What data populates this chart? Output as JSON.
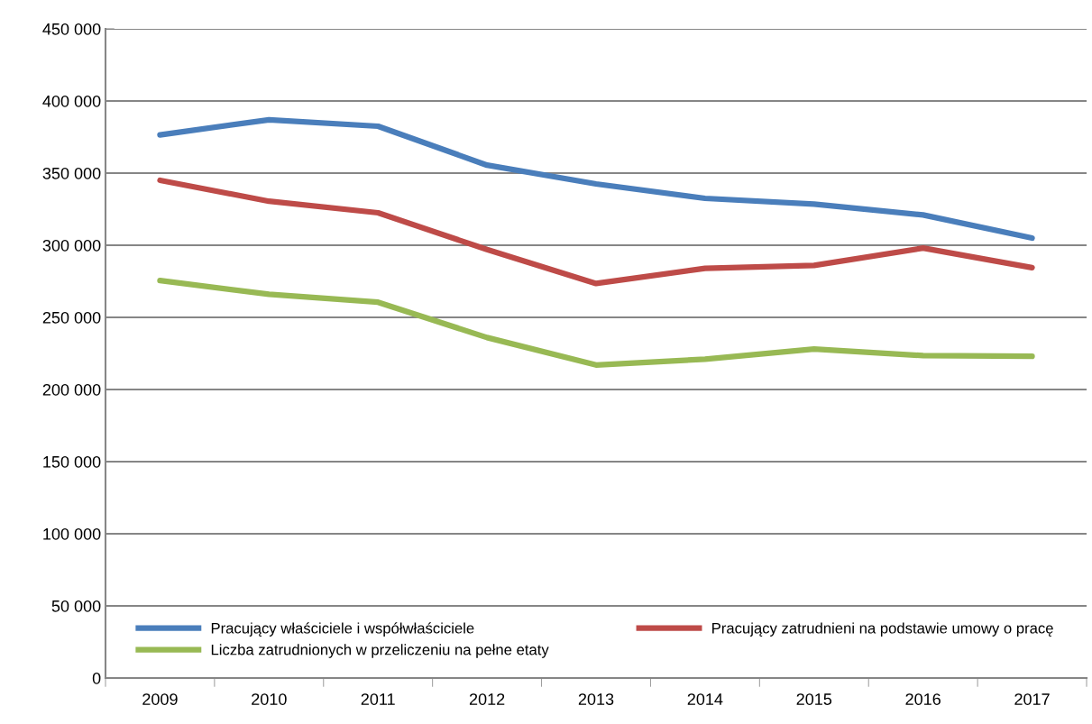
{
  "chart_data": {
    "type": "line",
    "categories": [
      "2009",
      "2010",
      "2011",
      "2012",
      "2013",
      "2014",
      "2015",
      "2016",
      "2017"
    ],
    "series": [
      {
        "name": "Pracujący właściciele i współwłaściciele",
        "color": "#4a7ebb",
        "values": [
          376500,
          387000,
          382500,
          355500,
          342500,
          332500,
          328500,
          321000,
          305000
        ]
      },
      {
        "name": "Pracujący zatrudnieni na podstawie umowy o pracę",
        "color": "#be4b48",
        "values": [
          345000,
          330500,
          322500,
          297000,
          273500,
          284000,
          286000,
          298000,
          284500
        ]
      },
      {
        "name": "Liczba zatrudnionych w przeliczeniu na pełne etaty",
        "color": "#98b954",
        "values": [
          275500,
          266000,
          260500,
          236000,
          217000,
          221000,
          228000,
          223500,
          223000
        ]
      }
    ],
    "ylim": [
      0,
      450000
    ],
    "yticks": [
      {
        "value": 0,
        "label": "0"
      },
      {
        "value": 50000,
        "label": "50 000"
      },
      {
        "value": 100000,
        "label": "100 000"
      },
      {
        "value": 150000,
        "label": "150 000"
      },
      {
        "value": 200000,
        "label": "200 000"
      },
      {
        "value": 250000,
        "label": "250 000"
      },
      {
        "value": 300000,
        "label": "300 000"
      },
      {
        "value": 350000,
        "label": "350 000"
      },
      {
        "value": 400000,
        "label": "400 000"
      },
      {
        "value": 450000,
        "label": "450 000"
      }
    ],
    "grid": "y",
    "legend": "bottom",
    "marker": "none",
    "line_style": "solid"
  }
}
